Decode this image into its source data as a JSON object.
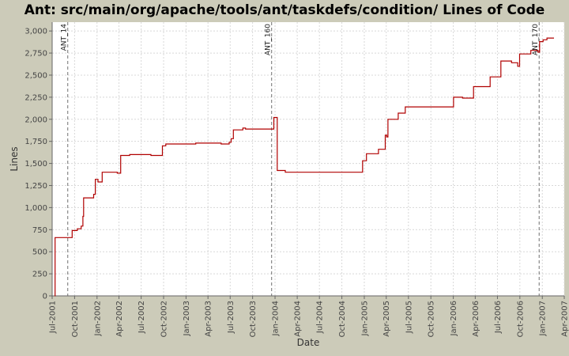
{
  "chart_data": {
    "type": "line",
    "title": "Ant: src/main/org/apache/tools/ant/taskdefs/condition/ Lines of Code",
    "xlabel": "Date",
    "ylabel": "Lines",
    "ylim": [
      0,
      3100
    ],
    "xlim": [
      "2001-07-01",
      "2007-04-01"
    ],
    "y_ticks": [
      0,
      250,
      500,
      750,
      1000,
      1250,
      1500,
      1750,
      2000,
      2250,
      2500,
      2750,
      3000
    ],
    "y_tick_labels": [
      "0",
      "250",
      "500",
      "750",
      "1,000",
      "1,250",
      "1,500",
      "1,750",
      "2,000",
      "2,250",
      "2,500",
      "2,750",
      "3,000"
    ],
    "x_ticks": [
      "2001-07-01",
      "2001-10-01",
      "2002-01-01",
      "2002-04-01",
      "2002-07-01",
      "2002-10-01",
      "2003-01-01",
      "2003-04-01",
      "2003-07-01",
      "2003-10-01",
      "2004-01-01",
      "2004-04-01",
      "2004-07-01",
      "2004-10-01",
      "2005-01-01",
      "2005-04-01",
      "2005-07-01",
      "2005-10-01",
      "2006-01-01",
      "2006-04-01",
      "2006-07-01",
      "2006-10-01",
      "2007-01-01",
      "2007-04-01"
    ],
    "x_tick_labels": [
      "Jul-2001",
      "Oct-2001",
      "Jan-2002",
      "Apr-2002",
      "Jul-2002",
      "Oct-2002",
      "Jan-2003",
      "Apr-2003",
      "Jul-2003",
      "Oct-2003",
      "Jan-2004",
      "Apr-2004",
      "Jul-2004",
      "Oct-2004",
      "Jan-2005",
      "Apr-2005",
      "Jul-2005",
      "Oct-2005",
      "Jan-2006",
      "Apr-2006",
      "Jul-2006",
      "Oct-2006",
      "Jan-2007",
      "Apr-2007"
    ],
    "grid": true,
    "colors": {
      "line": "#b00000",
      "plot_bg": "#ffffff",
      "page_bg": "#cccbb9",
      "grid": "#d8d8d8",
      "marker": "#707070"
    },
    "markers": [
      {
        "label": "ANT_14",
        "date": "2001-09-03"
      },
      {
        "label": "ANT_160",
        "date": "2003-12-18"
      },
      {
        "label": "ANT_170",
        "date": "2006-12-19"
      }
    ],
    "series": [
      {
        "step": true,
        "points": [
          {
            "x": "2001-07-12",
            "y": 0
          },
          {
            "x": "2001-07-13",
            "y": 660
          },
          {
            "x": "2001-08-01",
            "y": 660
          },
          {
            "x": "2001-09-20",
            "y": 660
          },
          {
            "x": "2001-09-21",
            "y": 740
          },
          {
            "x": "2001-10-12",
            "y": 760
          },
          {
            "x": "2001-10-28",
            "y": 790
          },
          {
            "x": "2001-11-04",
            "y": 900
          },
          {
            "x": "2001-11-07",
            "y": 1110
          },
          {
            "x": "2001-12-18",
            "y": 1150
          },
          {
            "x": "2001-12-25",
            "y": 1320
          },
          {
            "x": "2002-01-05",
            "y": 1290
          },
          {
            "x": "2002-01-22",
            "y": 1400
          },
          {
            "x": "2002-03-25",
            "y": 1390
          },
          {
            "x": "2002-04-08",
            "y": 1590
          },
          {
            "x": "2002-05-15",
            "y": 1600
          },
          {
            "x": "2002-08-10",
            "y": 1590
          },
          {
            "x": "2002-09-26",
            "y": 1700
          },
          {
            "x": "2002-10-10",
            "y": 1720
          },
          {
            "x": "2003-01-12",
            "y": 1720
          },
          {
            "x": "2003-02-10",
            "y": 1730
          },
          {
            "x": "2003-05-25",
            "y": 1720
          },
          {
            "x": "2003-06-27",
            "y": 1740
          },
          {
            "x": "2003-07-05",
            "y": 1780
          },
          {
            "x": "2003-07-14",
            "y": 1880
          },
          {
            "x": "2003-08-22",
            "y": 1900
          },
          {
            "x": "2003-09-02",
            "y": 1890
          },
          {
            "x": "2003-12-27",
            "y": 2020
          },
          {
            "x": "2004-01-10",
            "y": 1420
          },
          {
            "x": "2004-02-12",
            "y": 1400
          },
          {
            "x": "2004-12-15",
            "y": 1400
          },
          {
            "x": "2004-12-25",
            "y": 1530
          },
          {
            "x": "2005-01-10",
            "y": 1610
          },
          {
            "x": "2005-02-28",
            "y": 1660
          },
          {
            "x": "2005-03-28",
            "y": 1820
          },
          {
            "x": "2005-04-03",
            "y": 1800
          },
          {
            "x": "2005-04-08",
            "y": 2000
          },
          {
            "x": "2005-05-20",
            "y": 2070
          },
          {
            "x": "2005-06-18",
            "y": 2140
          },
          {
            "x": "2005-12-25",
            "y": 2140
          },
          {
            "x": "2006-01-02",
            "y": 2250
          },
          {
            "x": "2006-02-08",
            "y": 2240
          },
          {
            "x": "2006-03-25",
            "y": 2370
          },
          {
            "x": "2006-06-01",
            "y": 2480
          },
          {
            "x": "2006-07-15",
            "y": 2660
          },
          {
            "x": "2006-08-28",
            "y": 2640
          },
          {
            "x": "2006-09-22",
            "y": 2600
          },
          {
            "x": "2006-09-30",
            "y": 2740
          },
          {
            "x": "2006-11-15",
            "y": 2780
          },
          {
            "x": "2006-12-14",
            "y": 2760
          },
          {
            "x": "2006-12-21",
            "y": 2880
          },
          {
            "x": "2007-01-04",
            "y": 2900
          },
          {
            "x": "2007-01-20",
            "y": 2920
          },
          {
            "x": "2007-02-18",
            "y": 2920
          }
        ]
      }
    ]
  }
}
